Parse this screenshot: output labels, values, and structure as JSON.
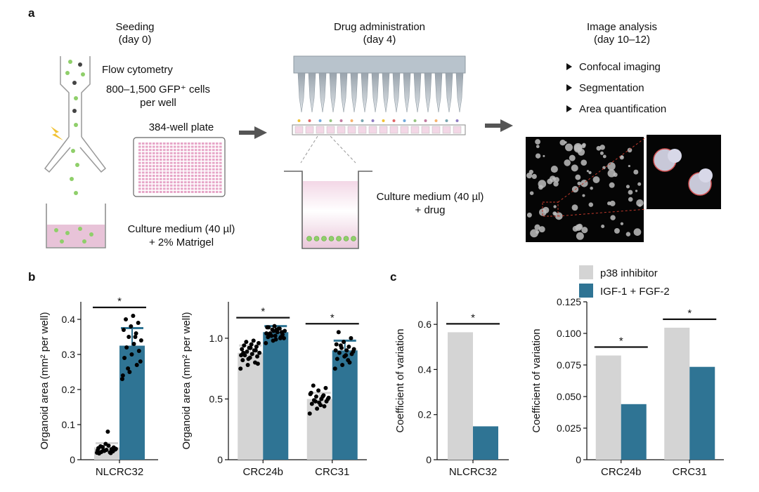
{
  "panel_labels": {
    "a": "a",
    "b": "b",
    "c": "c"
  },
  "colors": {
    "control": "#d4d4d4",
    "treatment": "#2f7494",
    "dots": "#000000",
    "accent_green": "#8fcf6a",
    "pink": "#e8c3d8",
    "arrow": "#555555"
  },
  "schematic": {
    "seeding": {
      "title": "Seeding",
      "day": "(day 0)",
      "flow": "Flow cytometry",
      "cells_line1": "800–1,500 GFP⁺ cells",
      "cells_line2": "per well",
      "plate": "384-well plate",
      "medium_line1": "Culture medium (40 µl)",
      "medium_line2": "+ 2% Matrigel"
    },
    "drug": {
      "title": "Drug administration",
      "day": "(day 4)",
      "medium_line1": "Culture medium (40 µl)",
      "medium_line2": "+ drug"
    },
    "analysis": {
      "title": "Image analysis",
      "day": "(day 10–12)",
      "steps": [
        "Confocal imaging",
        "Segmentation",
        "Area quantification"
      ]
    }
  },
  "legend": {
    "control": "p38 inhibitor",
    "treatment": "IGF-1 + FGF-2"
  },
  "chart_data": [
    {
      "type": "bar",
      "panel": "b",
      "categories": [
        "NLCRC32"
      ],
      "ylabel": "Organoid area (mm² per well)",
      "ylim": [
        0,
        0.45
      ],
      "yticks": [
        "0",
        "0.1",
        "0.2",
        "0.3",
        "0.4"
      ],
      "significance": [
        "*"
      ],
      "series": [
        {
          "name": "p38 inhibitor",
          "values": [
            0.035
          ],
          "err": [
            0.012
          ],
          "points": [
            [
              0.02,
              0.025,
              0.03,
              0.018,
              0.028,
              0.035,
              0.022,
              0.04,
              0.031,
              0.027,
              0.019,
              0.033,
              0.045,
              0.024,
              0.038,
              0.08,
              0.029,
              0.036,
              0.021,
              0.026
            ]
          ]
        },
        {
          "name": "IGF-1 + FGF-2",
          "values": [
            0.325
          ],
          "err": [
            0.05
          ],
          "points": [
            [
              0.23,
              0.25,
              0.27,
              0.29,
              0.3,
              0.31,
              0.32,
              0.33,
              0.34,
              0.35,
              0.36,
              0.37,
              0.38,
              0.39,
              0.4,
              0.41,
              0.28,
              0.26,
              0.35,
              0.24
            ]
          ]
        }
      ]
    },
    {
      "type": "bar",
      "panel": "b",
      "categories": [
        "CRC24b",
        "CRC31"
      ],
      "ylabel": "Organoid area (mm² per well)",
      "ylim": [
        0,
        1.3
      ],
      "yticks": [
        "0",
        "0.5",
        "1.0"
      ],
      "significance": [
        "*",
        "*"
      ],
      "series": [
        {
          "name": "p38 inhibitor",
          "values": [
            0.88,
            0.5
          ],
          "err": [
            0.06,
            0.05
          ],
          "points": [
            [
              0.75,
              0.78,
              0.8,
              0.82,
              0.84,
              0.85,
              0.86,
              0.87,
              0.88,
              0.89,
              0.9,
              0.91,
              0.92,
              0.93,
              0.94,
              0.95,
              0.96,
              0.97,
              0.98,
              0.86,
              0.83,
              0.9,
              0.88,
              0.92,
              0.79
            ],
            [
              0.38,
              0.42,
              0.44,
              0.46,
              0.47,
              0.48,
              0.49,
              0.5,
              0.51,
              0.52,
              0.53,
              0.55,
              0.57,
              0.59,
              0.61,
              0.45,
              0.5,
              0.48,
              0.52,
              0.54
            ]
          ]
        },
        {
          "name": "IGF-1 + FGF-2",
          "values": [
            1.05,
            0.9
          ],
          "err": [
            0.05,
            0.08
          ],
          "points": [
            [
              0.96,
              0.98,
              1.0,
              1.01,
              1.02,
              1.03,
              1.04,
              1.05,
              1.06,
              1.07,
              1.08,
              1.09,
              1.1,
              1.05,
              1.03,
              1.07,
              1.0,
              1.02,
              1.08,
              1.04,
              1.06,
              1.01,
              1.09,
              0.99
            ],
            [
              0.75,
              0.78,
              0.8,
              0.83,
              0.85,
              0.87,
              0.88,
              0.9,
              0.91,
              0.92,
              0.93,
              0.95,
              0.97,
              1.0,
              1.05,
              0.86,
              0.89,
              0.94,
              0.82,
              0.9
            ]
          ]
        }
      ]
    },
    {
      "type": "bar",
      "panel": "c",
      "categories": [
        "NLCRC32"
      ],
      "ylabel": "Coefficient of variation",
      "ylim": [
        0,
        0.7
      ],
      "yticks": [
        "0",
        "0.2",
        "0.4",
        "0.6"
      ],
      "significance": [
        "*"
      ],
      "series": [
        {
          "name": "p38 inhibitor",
          "values": [
            0.565
          ]
        },
        {
          "name": "IGF-1 + FGF-2",
          "values": [
            0.148
          ]
        }
      ]
    },
    {
      "type": "bar",
      "panel": "c",
      "categories": [
        "CRC24b",
        "CRC31"
      ],
      "ylabel": "Coefficient of variation",
      "ylim": [
        0,
        0.125
      ],
      "yticks": [
        "0",
        "0.025",
        "0.050",
        "0.075",
        "0.100",
        "0.125"
      ],
      "significance": [
        "*",
        "*"
      ],
      "series": [
        {
          "name": "p38 inhibitor",
          "values": [
            0.0825,
            0.1045
          ]
        },
        {
          "name": "IGF-1 + FGF-2",
          "values": [
            0.044,
            0.0735
          ]
        }
      ]
    }
  ]
}
